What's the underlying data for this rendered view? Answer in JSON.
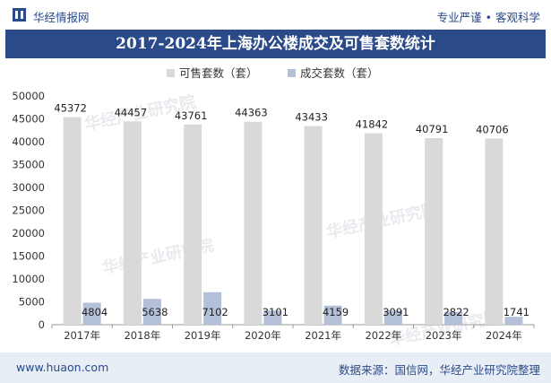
{
  "header": {
    "site_name": "华经情报网",
    "tagline": "专业严谨 • 客观科学"
  },
  "footer": {
    "url": "www.huaon.com",
    "source": "数据来源：国信网，华经产业研究院整理"
  },
  "watermark": "华经产业研究院",
  "colors": {
    "brand": "#2b4a8a",
    "series_available": "#d9d9d9",
    "series_sold": "#b4c0d8",
    "footer_bg": "#e8eef6"
  },
  "chart_data": {
    "type": "bar",
    "title": "2017-2024年上海办公楼成交及可售套数统计",
    "categories": [
      "2017年",
      "2018年",
      "2019年",
      "2020年",
      "2021年",
      "2022年",
      "2023年",
      "2024年"
    ],
    "series": [
      {
        "name": "可售套数（套）",
        "values": [
          45372,
          44457,
          43761,
          44363,
          43433,
          41842,
          40791,
          40706
        ]
      },
      {
        "name": "成交套数（套）",
        "values": [
          4804,
          5638,
          7102,
          3101,
          4159,
          3091,
          2822,
          1741
        ]
      }
    ],
    "ylim": [
      0,
      50000
    ],
    "yticks": [
      0,
      5000,
      10000,
      15000,
      20000,
      25000,
      30000,
      35000,
      40000,
      45000,
      50000
    ],
    "xlabel": "",
    "ylabel": "",
    "legend": "top-center",
    "grid": false
  }
}
